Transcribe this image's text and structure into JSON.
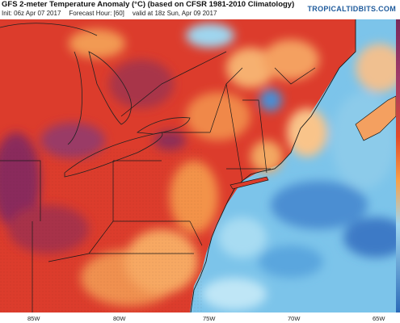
{
  "header": {
    "title": "GFS 2-meter Temperature Anomaly (°C) (based on CFSR 1981-2010 Climatology)",
    "init": "Init: 06z Apr 07 2017",
    "forecast_hour": "Forecast Hour: [60]",
    "valid": "valid at 18z Sun, Apr 09 2017",
    "brand": "TROPICALTIDBITS.COM"
  },
  "map": {
    "longitude_labels": [
      "85W",
      "80W",
      "75W",
      "70W",
      "65W"
    ],
    "colors": {
      "warm_dark": "#7a2a5a",
      "warm_magenta": "#a0406e",
      "warm_red": "#d8352a",
      "warm_orange": "#f07a3a",
      "warm_light": "#f9c48a",
      "cool_light": "#9fd6ef",
      "cool_mid": "#5aaee0",
      "cool_dark": "#2a6ab8",
      "border": "#222222"
    }
  }
}
